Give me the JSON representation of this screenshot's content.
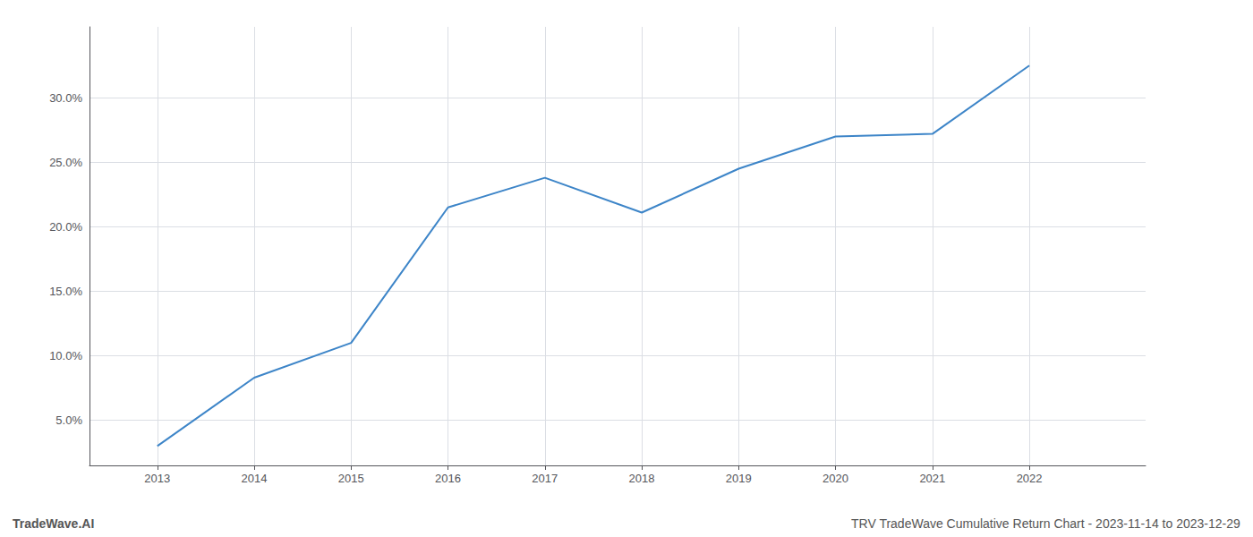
{
  "chart_data": {
    "type": "line",
    "x": [
      2013,
      2014,
      2015,
      2016,
      2017,
      2018,
      2019,
      2020,
      2021,
      2022
    ],
    "values": [
      3.0,
      8.3,
      11.0,
      21.5,
      23.8,
      21.1,
      24.5,
      27.0,
      27.2,
      32.5
    ],
    "color": "#3d85c8",
    "xlim": [
      2012.3,
      2023.2
    ],
    "xticks": [
      2013,
      2014,
      2015,
      2016,
      2017,
      2018,
      2019,
      2020,
      2021,
      2022
    ],
    "ylim": [
      1.5,
      35.5
    ],
    "yticks": [
      {
        "value": 5.0,
        "label": "5.0%"
      },
      {
        "value": 10.0,
        "label": "10.0%"
      },
      {
        "value": 15.0,
        "label": "15.0%"
      },
      {
        "value": 20.0,
        "label": "20.0%"
      },
      {
        "value": 25.0,
        "label": "25.0%"
      },
      {
        "value": 30.0,
        "label": "30.0%"
      }
    ],
    "grid": true,
    "annotations": [
      "TradeWave.AI",
      "TRV TradeWave Cumulative Return Chart - 2023-11-14 to 2023-12-29"
    ]
  }
}
